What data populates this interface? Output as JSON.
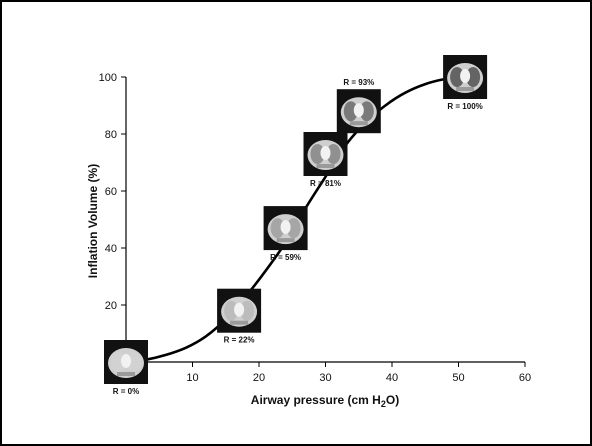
{
  "chart_data": {
    "type": "line",
    "xlabel": "Airway pressure (cm H",
    "xlabel_subscript": "2",
    "xlabel_suffix": "O)",
    "ylabel": "Inflation Volume (%)",
    "xlim": [
      0,
      60
    ],
    "ylim": [
      0,
      100
    ],
    "x_ticks": [
      "10",
      "20",
      "30",
      "40",
      "50",
      "60"
    ],
    "y_ticks": [
      "20",
      "40",
      "60",
      "80",
      "100"
    ],
    "grid": false,
    "legend": "none",
    "curve": {
      "x": [
        0,
        3,
        6,
        9,
        12,
        15,
        18,
        21,
        24,
        27,
        30,
        33,
        36,
        39,
        42,
        45,
        48,
        51,
        54
      ],
      "y": [
        0,
        0.8,
        2.5,
        5,
        9,
        15,
        23,
        32,
        42,
        54,
        65,
        76,
        84,
        90,
        94.5,
        97.5,
        99.3,
        100,
        100
      ]
    },
    "images": [
      {
        "label": "R = 0%",
        "x": 0,
        "y": 0
      },
      {
        "label": "R = 22%",
        "x": 17,
        "y": 18
      },
      {
        "label": "R = 59%",
        "x": 24,
        "y": 47
      },
      {
        "label": "R = 81%",
        "x": 30,
        "y": 73
      },
      {
        "label": "R = 93%",
        "x": 35,
        "y": 88
      },
      {
        "label": "R = 100%",
        "x": 51,
        "y": 100
      }
    ]
  }
}
